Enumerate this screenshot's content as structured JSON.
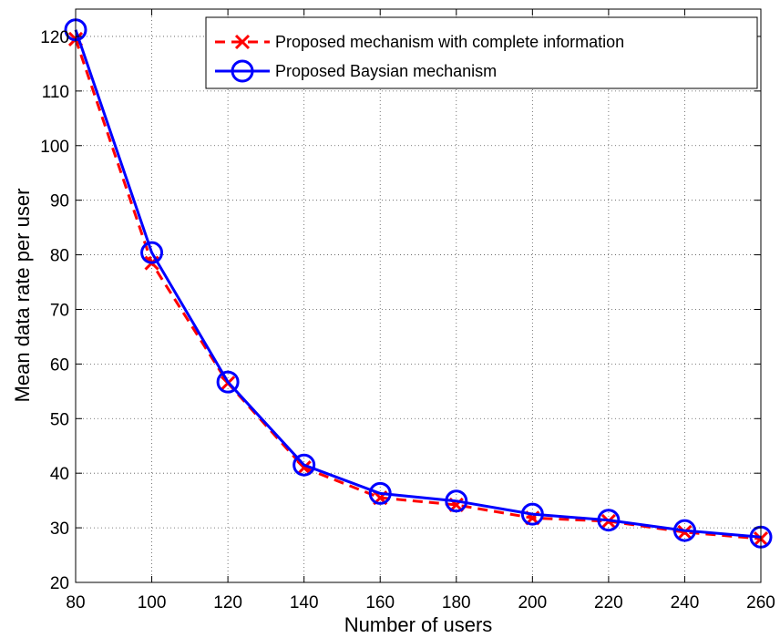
{
  "chart_data": {
    "type": "line",
    "xlabel": "Number of users",
    "ylabel": "Mean data rate per user",
    "xlim": [
      80,
      260
    ],
    "ylim": [
      20,
      125
    ],
    "xticks": [
      80,
      100,
      120,
      140,
      160,
      180,
      200,
      220,
      240,
      260
    ],
    "yticks": [
      20,
      30,
      40,
      50,
      60,
      70,
      80,
      90,
      100,
      110,
      120
    ],
    "grid": true,
    "legend_position": "top-right",
    "x": [
      80,
      100,
      120,
      140,
      160,
      180,
      200,
      220,
      240,
      260
    ],
    "series": [
      {
        "name": "Proposed mechanism with complete information",
        "color": "#ff0000",
        "line_style": "dashed",
        "marker": "x",
        "values": [
          119.5,
          78.5,
          56.5,
          41.0,
          35.5,
          34.2,
          31.8,
          31.2,
          29.2,
          28.0
        ]
      },
      {
        "name": "Proposed Baysian mechanism",
        "color": "#0000ff",
        "line_style": "solid",
        "marker": "circle",
        "values": [
          121.2,
          80.4,
          56.7,
          41.5,
          36.3,
          34.9,
          32.5,
          31.4,
          29.5,
          28.3
        ]
      }
    ]
  }
}
